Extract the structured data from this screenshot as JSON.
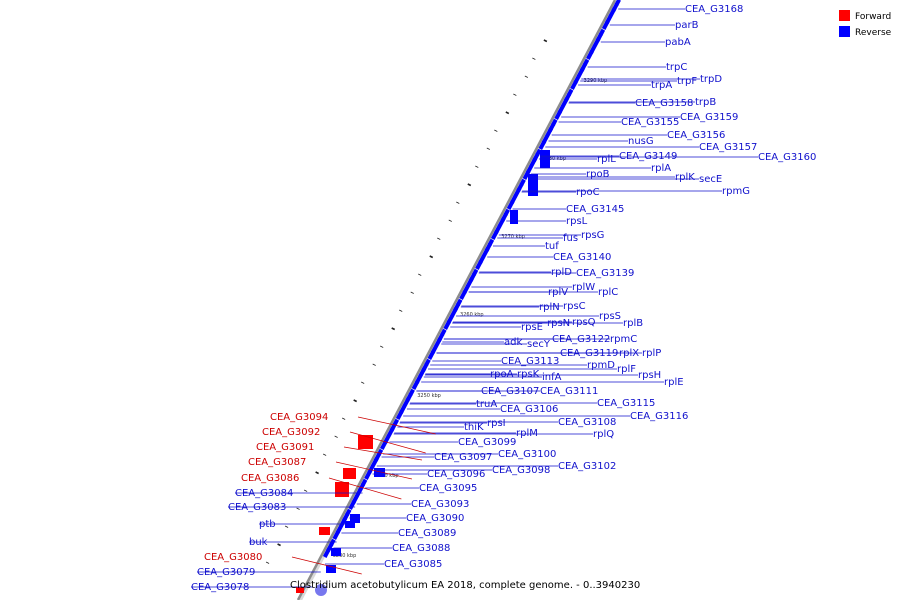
{
  "title": "Clostridium acetobutylicum EA 2018, complete genome. - 0..3940230",
  "colors": {
    "forward": "#ff0000",
    "reverse": "#0000ff",
    "axis": "#8c8c8c",
    "text_forward": "#cc0000",
    "text_reverse": "#1111cc"
  },
  "legend": [
    {
      "label": "Forward",
      "color": "#ff0000"
    },
    {
      "label": "Reverse",
      "color": "#0000ff"
    }
  ],
  "scale_ticks": [
    "3290 kbp",
    "3280 kbp",
    "3270 kbp",
    "3260 kbp",
    "3250 kbp",
    "3240 kbp",
    "3230 kbp"
  ],
  "genes": [
    {
      "name": "CEA_G3168",
      "strand": "reverse"
    },
    {
      "name": "parB",
      "strand": "reverse"
    },
    {
      "name": "pabA",
      "strand": "reverse"
    },
    {
      "name": "trpC",
      "strand": "reverse"
    },
    {
      "name": "trpF",
      "strand": "reverse"
    },
    {
      "name": "trpD",
      "strand": "reverse"
    },
    {
      "name": "trpA",
      "strand": "reverse"
    },
    {
      "name": "CEA_G3158",
      "strand": "reverse"
    },
    {
      "name": "trpB",
      "strand": "reverse"
    },
    {
      "name": "CEA_G3159",
      "strand": "reverse"
    },
    {
      "name": "CEA_G3155",
      "strand": "reverse"
    },
    {
      "name": "CEA_G3156",
      "strand": "reverse"
    },
    {
      "name": "nusG",
      "strand": "reverse"
    },
    {
      "name": "CEA_G3157",
      "strand": "reverse"
    },
    {
      "name": "CEA_G3160",
      "strand": "reverse"
    },
    {
      "name": "CEA_G3149",
      "strand": "reverse"
    },
    {
      "name": "rplL",
      "strand": "reverse"
    },
    {
      "name": "rplA",
      "strand": "reverse"
    },
    {
      "name": "rpoB",
      "strand": "reverse"
    },
    {
      "name": "rplK",
      "strand": "reverse"
    },
    {
      "name": "secE",
      "strand": "reverse"
    },
    {
      "name": "rpoC",
      "strand": "reverse"
    },
    {
      "name": "rpmG",
      "strand": "reverse"
    },
    {
      "name": "CEA_G3145",
      "strand": "reverse"
    },
    {
      "name": "rpsL",
      "strand": "reverse"
    },
    {
      "name": "fus",
      "strand": "reverse"
    },
    {
      "name": "rpsG",
      "strand": "reverse"
    },
    {
      "name": "tuf",
      "strand": "reverse"
    },
    {
      "name": "CEA_G3140",
      "strand": "reverse"
    },
    {
      "name": "rplD",
      "strand": "reverse"
    },
    {
      "name": "CEA_G3139",
      "strand": "reverse"
    },
    {
      "name": "rplV",
      "strand": "reverse"
    },
    {
      "name": "rplW",
      "strand": "reverse"
    },
    {
      "name": "rplC",
      "strand": "reverse"
    },
    {
      "name": "rplN",
      "strand": "reverse"
    },
    {
      "name": "rpsC",
      "strand": "reverse"
    },
    {
      "name": "rpsS",
      "strand": "reverse"
    },
    {
      "name": "rplB",
      "strand": "reverse"
    },
    {
      "name": "rpsE",
      "strand": "reverse"
    },
    {
      "name": "rpsN",
      "strand": "reverse"
    },
    {
      "name": "rpsQ",
      "strand": "reverse"
    },
    {
      "name": "adk",
      "strand": "reverse"
    },
    {
      "name": "secY",
      "strand": "reverse"
    },
    {
      "name": "CEA_G3122",
      "strand": "reverse"
    },
    {
      "name": "rpmC",
      "strand": "reverse"
    },
    {
      "name": "CEA_G3119",
      "strand": "reverse"
    },
    {
      "name": "rplX",
      "strand": "reverse"
    },
    {
      "name": "rplP",
      "strand": "reverse"
    },
    {
      "name": "CEA_G3113",
      "strand": "reverse"
    },
    {
      "name": "rpmD",
      "strand": "reverse"
    },
    {
      "name": "rplF",
      "strand": "reverse"
    },
    {
      "name": "rpoA",
      "strand": "reverse"
    },
    {
      "name": "rpsK",
      "strand": "reverse"
    },
    {
      "name": "infA",
      "strand": "reverse"
    },
    {
      "name": "rpsH",
      "strand": "reverse"
    },
    {
      "name": "rplE",
      "strand": "reverse"
    },
    {
      "name": "CEA_G3107",
      "strand": "reverse"
    },
    {
      "name": "CEA_G3111",
      "strand": "reverse"
    },
    {
      "name": "truA",
      "strand": "reverse"
    },
    {
      "name": "CEA_G3106",
      "strand": "reverse"
    },
    {
      "name": "CEA_G3115",
      "strand": "reverse"
    },
    {
      "name": "CEA_G3116",
      "strand": "reverse"
    },
    {
      "name": "rpsI",
      "strand": "reverse"
    },
    {
      "name": "CEA_G3108",
      "strand": "reverse"
    },
    {
      "name": "thiK",
      "strand": "reverse"
    },
    {
      "name": "rplM",
      "strand": "reverse"
    },
    {
      "name": "rplQ",
      "strand": "reverse"
    },
    {
      "name": "CEA_G3099",
      "strand": "reverse"
    },
    {
      "name": "CEA_G3100",
      "strand": "reverse"
    },
    {
      "name": "CEA_G3097",
      "strand": "reverse"
    },
    {
      "name": "CEA_G3102",
      "strand": "reverse"
    },
    {
      "name": "CEA_G3098",
      "strand": "reverse"
    },
    {
      "name": "CEA_G3096",
      "strand": "reverse"
    },
    {
      "name": "CEA_G3095",
      "strand": "reverse"
    },
    {
      "name": "CEA_G3093",
      "strand": "reverse"
    },
    {
      "name": "CEA_G3090",
      "strand": "reverse"
    },
    {
      "name": "CEA_G3089",
      "strand": "reverse"
    },
    {
      "name": "CEA_G3088",
      "strand": "reverse"
    },
    {
      "name": "CEA_G3085",
      "strand": "reverse"
    },
    {
      "name": "CEA_G3094",
      "strand": "forward"
    },
    {
      "name": "CEA_G3092",
      "strand": "forward"
    },
    {
      "name": "CEA_G3091",
      "strand": "forward"
    },
    {
      "name": "CEA_G3087",
      "strand": "forward"
    },
    {
      "name": "CEA_G3086",
      "strand": "forward"
    },
    {
      "name": "CEA_G3084",
      "strand": "reverse"
    },
    {
      "name": "CEA_G3083",
      "strand": "reverse"
    },
    {
      "name": "ptb",
      "strand": "reverse"
    },
    {
      "name": "buk",
      "strand": "reverse"
    },
    {
      "name": "CEA_G3080",
      "strand": "forward"
    },
    {
      "name": "CEA_G3079",
      "strand": "reverse"
    },
    {
      "name": "CEA_G3078",
      "strand": "reverse"
    }
  ]
}
